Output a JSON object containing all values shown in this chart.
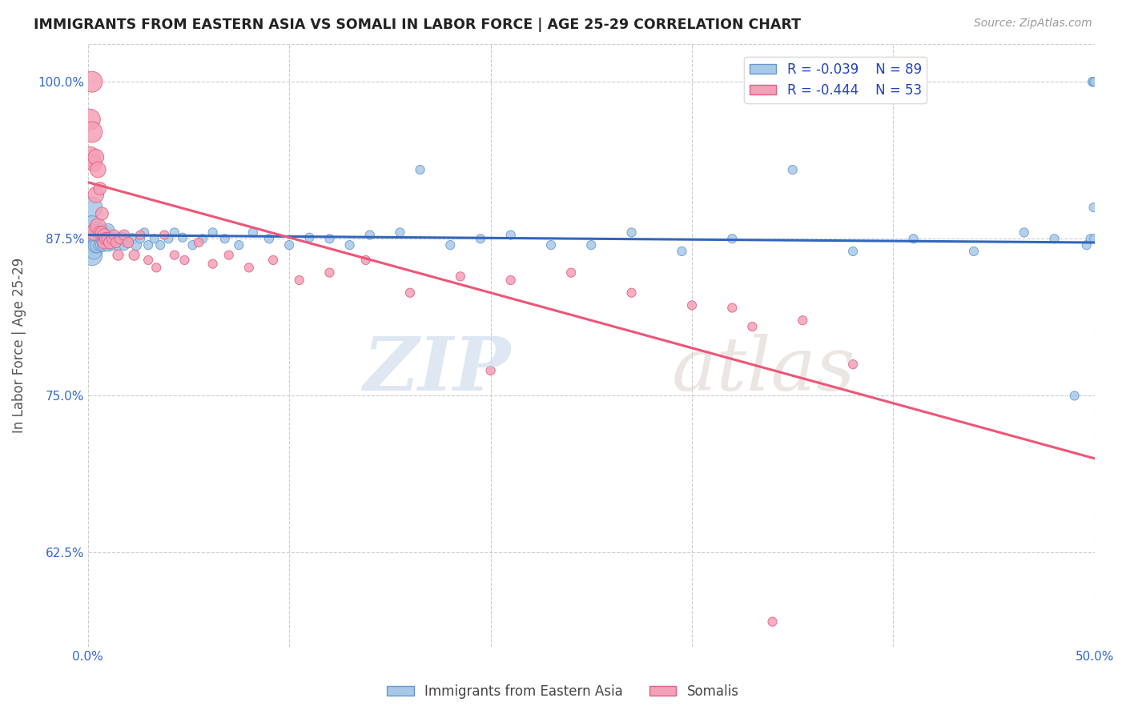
{
  "title": "IMMIGRANTS FROM EASTERN ASIA VS SOMALI IN LABOR FORCE | AGE 25-29 CORRELATION CHART",
  "source": "Source: ZipAtlas.com",
  "ylabel": "In Labor Force | Age 25-29",
  "xlim": [
    0.0,
    0.5
  ],
  "ylim": [
    0.55,
    1.03
  ],
  "ytick_positions": [
    0.625,
    0.75,
    0.875,
    1.0
  ],
  "yticklabels": [
    "62.5%",
    "75.0%",
    "87.5%",
    "100.0%"
  ],
  "xtick_positions": [
    0.0,
    0.1,
    0.2,
    0.3,
    0.4,
    0.5
  ],
  "xticklabels": [
    "0.0%",
    "",
    "",
    "",
    "",
    "50.0%"
  ],
  "blue_R": -0.039,
  "blue_N": 89,
  "pink_R": -0.444,
  "pink_N": 53,
  "blue_color": "#a8c8e8",
  "pink_color": "#f4a0b8",
  "blue_edge_color": "#6699cc",
  "pink_edge_color": "#e06080",
  "blue_line_color": "#3366bb",
  "pink_line_color": "#ee5577",
  "blue_label": "Immigrants from Eastern Asia",
  "pink_label": "Somalis",
  "blue_line_y0": 0.878,
  "blue_line_y1": 0.872,
  "pink_line_y0": 0.92,
  "pink_line_y1": 0.7,
  "blue_x": [
    0.001,
    0.001,
    0.001,
    0.002,
    0.002,
    0.002,
    0.002,
    0.003,
    0.003,
    0.003,
    0.003,
    0.004,
    0.004,
    0.004,
    0.005,
    0.005,
    0.005,
    0.005,
    0.006,
    0.006,
    0.006,
    0.007,
    0.007,
    0.007,
    0.008,
    0.008,
    0.008,
    0.009,
    0.009,
    0.01,
    0.01,
    0.01,
    0.011,
    0.012,
    0.013,
    0.014,
    0.015,
    0.016,
    0.017,
    0.018,
    0.019,
    0.02,
    0.022,
    0.024,
    0.026,
    0.028,
    0.03,
    0.033,
    0.036,
    0.04,
    0.043,
    0.047,
    0.052,
    0.057,
    0.062,
    0.068,
    0.075,
    0.082,
    0.09,
    0.1,
    0.11,
    0.12,
    0.13,
    0.14,
    0.155,
    0.165,
    0.18,
    0.195,
    0.21,
    0.23,
    0.25,
    0.27,
    0.295,
    0.32,
    0.35,
    0.38,
    0.41,
    0.44,
    0.465,
    0.48,
    0.49,
    0.496,
    0.498,
    0.499,
    0.499,
    0.4995,
    0.4997,
    0.4998,
    0.4999
  ],
  "blue_y": [
    0.875,
    0.882,
    0.87,
    0.9,
    0.875,
    0.885,
    0.862,
    0.875,
    0.88,
    0.87,
    0.865,
    0.875,
    0.882,
    0.87,
    0.875,
    0.88,
    0.87,
    0.878,
    0.876,
    0.87,
    0.882,
    0.875,
    0.87,
    0.88,
    0.875,
    0.87,
    0.878,
    0.875,
    0.88,
    0.875,
    0.87,
    0.882,
    0.875,
    0.87,
    0.875,
    0.876,
    0.87,
    0.875,
    0.876,
    0.87,
    0.875,
    0.872,
    0.875,
    0.87,
    0.875,
    0.88,
    0.87,
    0.875,
    0.87,
    0.875,
    0.88,
    0.876,
    0.87,
    0.875,
    0.88,
    0.875,
    0.87,
    0.88,
    0.875,
    0.87,
    0.876,
    0.875,
    0.87,
    0.878,
    0.88,
    0.93,
    0.87,
    0.875,
    0.878,
    0.87,
    0.87,
    0.88,
    0.865,
    0.875,
    0.93,
    0.865,
    0.875,
    0.865,
    0.88,
    0.875,
    0.75,
    0.87,
    0.875,
    1.0,
    1.0,
    0.9,
    0.875,
    1.0,
    1.0
  ],
  "pink_x": [
    0.001,
    0.001,
    0.002,
    0.002,
    0.003,
    0.003,
    0.004,
    0.004,
    0.005,
    0.005,
    0.006,
    0.006,
    0.007,
    0.007,
    0.008,
    0.008,
    0.009,
    0.01,
    0.011,
    0.012,
    0.013,
    0.014,
    0.015,
    0.016,
    0.018,
    0.02,
    0.023,
    0.026,
    0.03,
    0.034,
    0.038,
    0.043,
    0.048,
    0.055,
    0.062,
    0.07,
    0.08,
    0.092,
    0.105,
    0.12,
    0.138,
    0.16,
    0.185,
    0.21,
    0.24,
    0.27,
    0.3,
    0.33,
    0.355,
    0.38,
    0.32,
    0.2,
    0.34
  ],
  "pink_y": [
    0.94,
    0.97,
    1.0,
    0.96,
    0.935,
    0.88,
    0.94,
    0.91,
    0.885,
    0.93,
    0.915,
    0.88,
    0.88,
    0.895,
    0.878,
    0.872,
    0.875,
    0.875,
    0.872,
    0.875,
    0.878,
    0.872,
    0.862,
    0.875,
    0.878,
    0.872,
    0.862,
    0.878,
    0.858,
    0.852,
    0.878,
    0.862,
    0.858,
    0.872,
    0.855,
    0.862,
    0.852,
    0.858,
    0.842,
    0.848,
    0.858,
    0.832,
    0.845,
    0.842,
    0.848,
    0.832,
    0.822,
    0.805,
    0.81,
    0.775,
    0.82,
    0.77,
    0.57
  ]
}
